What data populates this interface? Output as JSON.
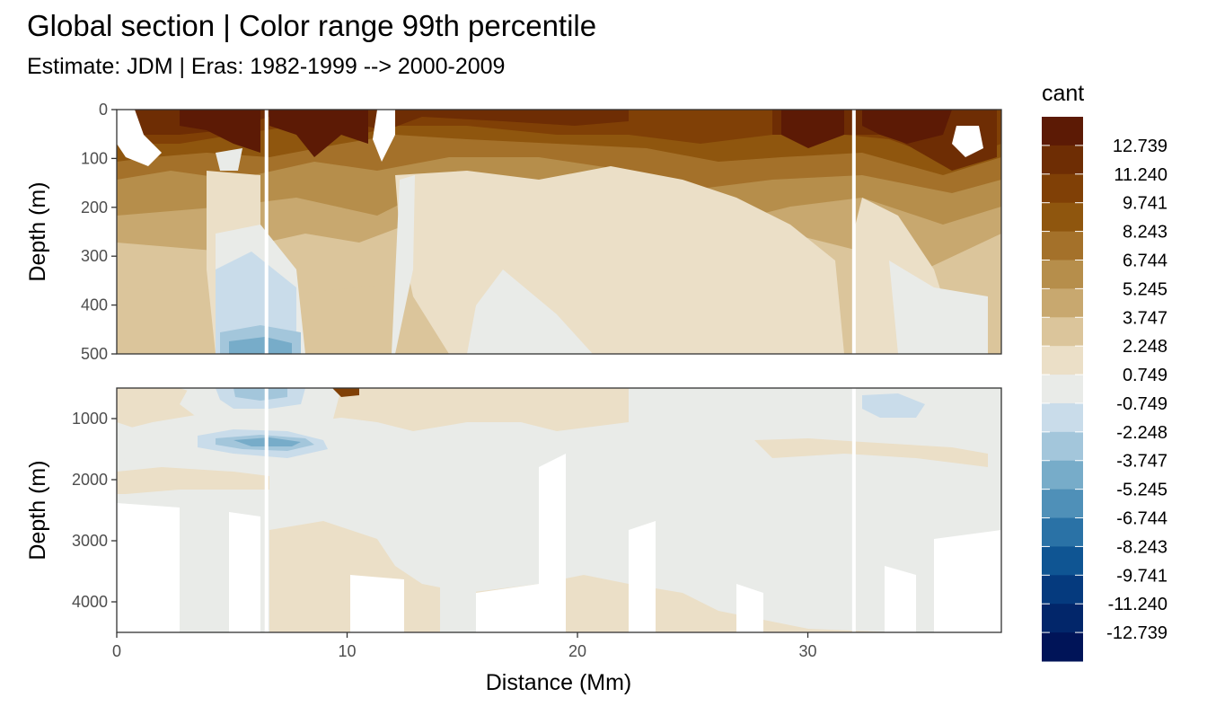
{
  "chart_data": {
    "type": "heatmap",
    "title": "Global section | Color range 99th percentile",
    "subtitle": "Estimate: JDM  | Eras: 1982-1999 --> 2000-2009",
    "xlabel": "Distance (Mm)",
    "ylabel": "Depth (m)",
    "xlim": [
      0,
      38.4
    ],
    "x_ticks": [
      0,
      10,
      20,
      30
    ],
    "panels": [
      {
        "name": "upper",
        "ylim": [
          0,
          500
        ],
        "y_ticks": [
          0,
          100,
          200,
          300,
          400,
          500
        ]
      },
      {
        "name": "lower",
        "ylim": [
          500,
          4500
        ],
        "y_ticks": [
          1000,
          2000,
          3000,
          4000
        ]
      }
    ],
    "section_breaks_x": [
      6.5,
      32.0
    ],
    "legend": {
      "title": "cant",
      "placement": "right",
      "labels": [
        "12.739",
        "11.240",
        "9.741",
        "8.243",
        "6.744",
        "5.245",
        "3.747",
        "2.248",
        "0.749",
        "-0.749",
        "-2.248",
        "-3.747",
        "-5.245",
        "-6.744",
        "-8.243",
        "-9.741",
        "-11.240",
        "-12.739"
      ],
      "colors": [
        "#5c1a05",
        "#6e2d04",
        "#804006",
        "#8f560e",
        "#a4712a",
        "#b68e4b",
        "#c8a86f",
        "#dbc59b",
        "#ebdfc7",
        "#e9ebe8",
        "#c9dcea",
        "#a3c6db",
        "#77acc9",
        "#4f90b8",
        "#2a72a6",
        "#0f5593",
        "#053a7e",
        "#02266a",
        "#001458"
      ]
    }
  }
}
